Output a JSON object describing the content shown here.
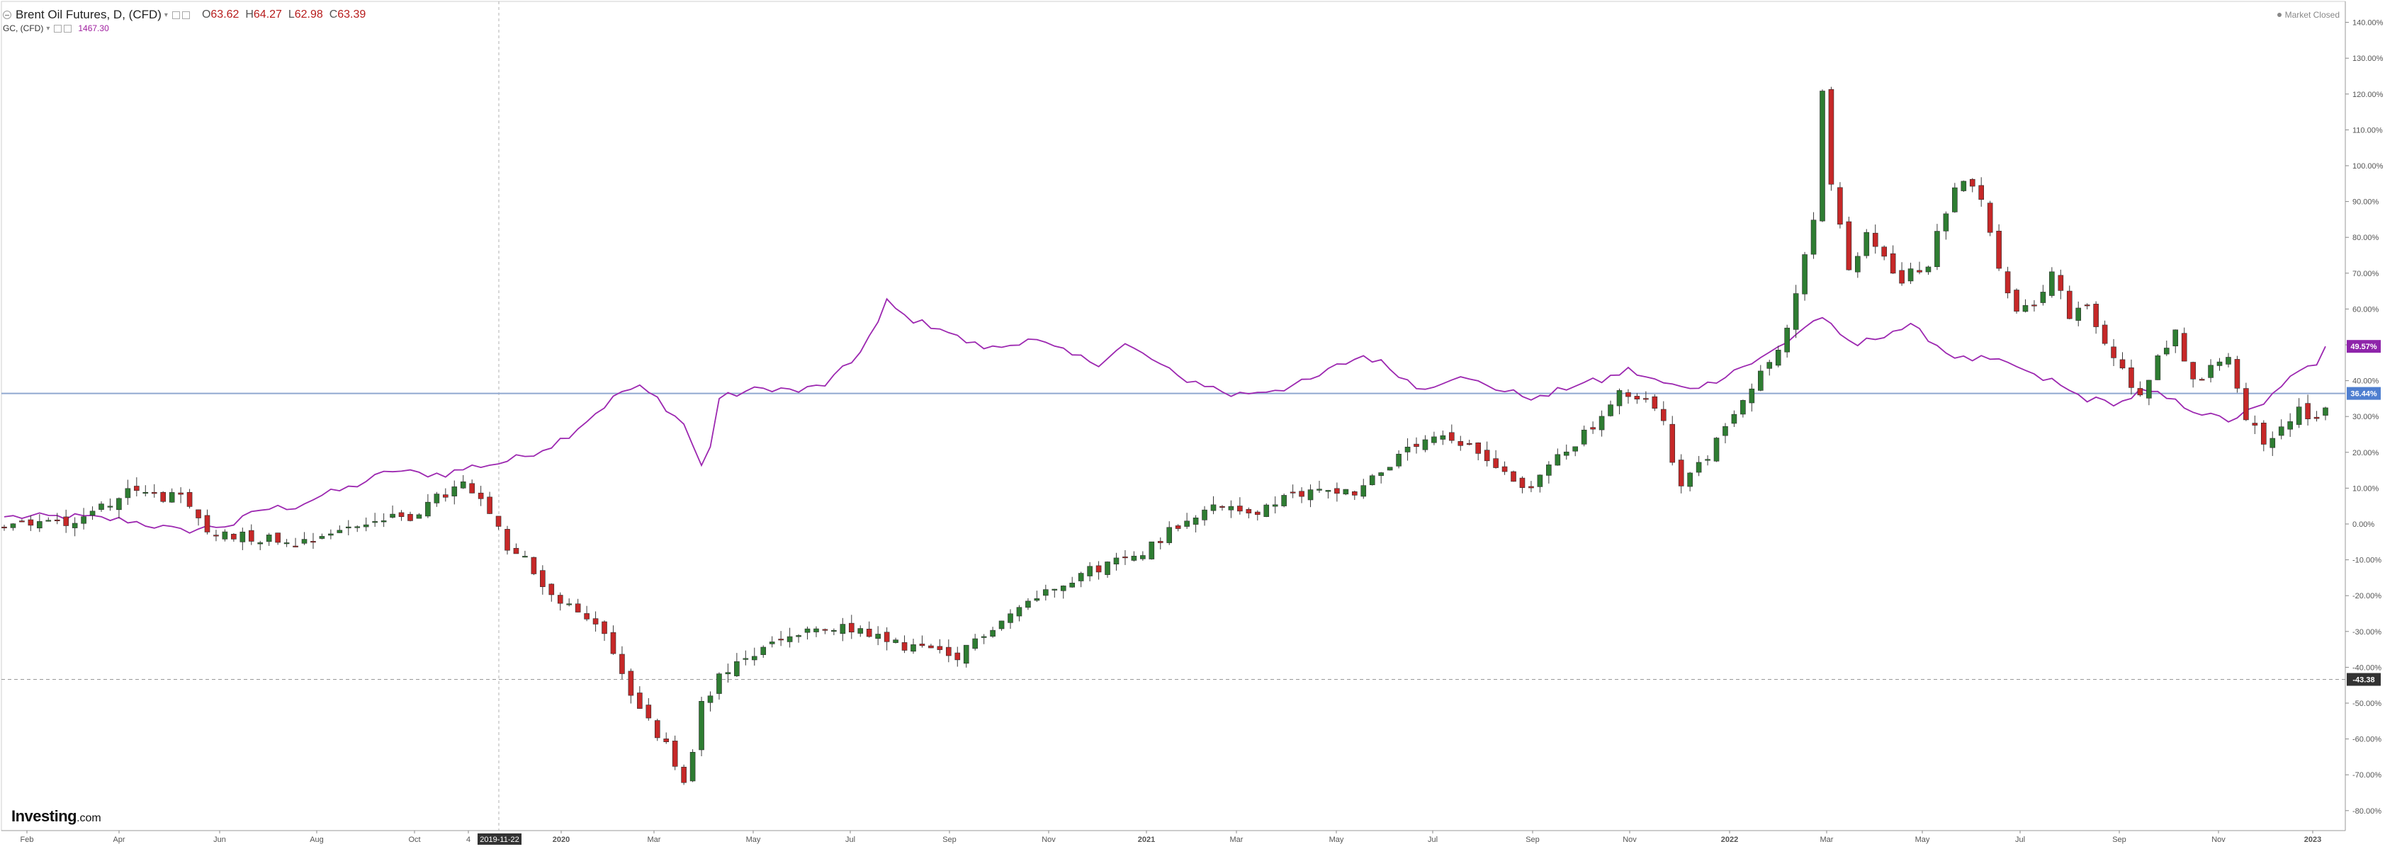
{
  "legend": {
    "title": "Brent Oil Futures, D, (CFD)",
    "open_label": "O",
    "open": "63.62",
    "high_label": "H",
    "high": "64.27",
    "low_label": "L",
    "low": "62.98",
    "close_label": "C",
    "close": "63.39",
    "overlay_symbol": "GC, (CFD)",
    "overlay_value": "1467.30"
  },
  "market_status": "Market Closed",
  "brand": {
    "name": "Investing",
    "suffix": ".com"
  },
  "colors": {
    "up": "#2e7d32",
    "down": "#c62828",
    "overlay": "#9c27b0",
    "crosshair": "#b0b0b0",
    "hline": "#90a8d0",
    "bg": "#ffffff"
  },
  "icons": [
    "collapse-icon",
    "settings-icon",
    "close-icon"
  ],
  "chart_data": {
    "type": "line",
    "x_axis_labels": [
      "Feb",
      "Apr",
      "Jun",
      "Aug",
      "Oct",
      "4",
      "2020",
      "Mar",
      "May",
      "Jul",
      "Sep",
      "Nov",
      "2021",
      "Mar",
      "May",
      "Jul",
      "Sep",
      "Nov",
      "2022",
      "Mar",
      "May",
      "Jul",
      "Sep",
      "Nov",
      "2023"
    ],
    "crosshair_date": "2019-11-22",
    "y_axis": {
      "unit": "%",
      "ylim": [
        -85,
        145
      ],
      "ticks": [
        "140.00%",
        "130.00%",
        "120.00%",
        "110.00%",
        "100.00%",
        "90.00%",
        "80.00%",
        "70.00%",
        "60.00%",
        "50.00%",
        "40.00%",
        "30.00%",
        "20.00%",
        "10.00%",
        "0.00%",
        "-10.00%",
        "-20.00%",
        "-30.00%",
        "-40.00%",
        "-50.00%",
        "-60.00%",
        "-70.00%",
        "-80.00%"
      ]
    },
    "badges": {
      "overlay_last": "49.57%",
      "crosshair_value": "36.44%",
      "horizontal_line": "-43.38"
    },
    "badge_values": {
      "overlay_last": 49.57,
      "crosshair_value": 36.44,
      "horizontal_line": -43.38
    },
    "series": [
      {
        "name": "Brent Oil Futures",
        "style": "candlestick",
        "anchors": [
          [
            0,
            0
          ],
          [
            8,
            1
          ],
          [
            14,
            9
          ],
          [
            20,
            7
          ],
          [
            23,
            -2
          ],
          [
            26,
            -3
          ],
          [
            30,
            -4
          ],
          [
            33,
            -5
          ],
          [
            36,
            -3
          ],
          [
            39,
            -1
          ],
          [
            42,
            1
          ],
          [
            46,
            2
          ],
          [
            49,
            7
          ],
          [
            52,
            11
          ],
          [
            55,
            3
          ],
          [
            57,
            -7
          ],
          [
            59,
            -10
          ],
          [
            61,
            -17
          ],
          [
            63,
            -22
          ],
          [
            65,
            -25
          ],
          [
            67,
            -27
          ],
          [
            69,
            -35
          ],
          [
            70,
            -42
          ],
          [
            72,
            -52
          ],
          [
            75,
            -62
          ],
          [
            77,
            -72
          ],
          [
            78,
            -65
          ],
          [
            79,
            -50
          ],
          [
            81,
            -43
          ],
          [
            84,
            -38
          ],
          [
            88,
            -32
          ],
          [
            92,
            -30
          ],
          [
            96,
            -29
          ],
          [
            100,
            -33
          ],
          [
            102,
            -34
          ],
          [
            105,
            -35
          ],
          [
            107,
            -38
          ],
          [
            108,
            -38
          ],
          [
            110,
            -32
          ],
          [
            114,
            -25
          ],
          [
            119,
            -17
          ],
          [
            124,
            -12
          ],
          [
            128,
            -9
          ],
          [
            131,
            -4
          ],
          [
            134,
            2
          ],
          [
            136,
            4
          ],
          [
            139,
            5
          ],
          [
            142,
            3
          ],
          [
            146,
            8
          ],
          [
            150,
            10
          ],
          [
            153,
            9
          ],
          [
            156,
            15
          ],
          [
            159,
            20
          ],
          [
            162,
            24
          ],
          [
            165,
            22
          ],
          [
            167,
            20
          ],
          [
            169,
            17
          ],
          [
            171,
            12
          ],
          [
            173,
            10
          ],
          [
            176,
            19
          ],
          [
            180,
            27
          ],
          [
            183,
            36
          ],
          [
            186,
            34
          ],
          [
            188,
            30
          ],
          [
            189,
            18
          ],
          [
            190,
            12
          ],
          [
            191,
            13
          ],
          [
            193,
            19
          ],
          [
            195,
            28
          ],
          [
            197,
            36
          ],
          [
            199,
            42
          ],
          [
            201,
            48
          ],
          [
            203,
            63
          ],
          [
            205,
            85
          ],
          [
            206,
            120
          ],
          [
            207,
            95
          ],
          [
            209,
            70
          ],
          [
            211,
            80
          ],
          [
            213,
            75
          ],
          [
            215,
            67
          ],
          [
            216,
            70
          ],
          [
            218,
            73
          ],
          [
            220,
            88
          ],
          [
            222,
            97
          ],
          [
            224,
            92
          ],
          [
            226,
            70
          ],
          [
            228,
            60
          ],
          [
            230,
            62
          ],
          [
            232,
            70
          ],
          [
            234,
            58
          ],
          [
            236,
            60
          ],
          [
            238,
            50
          ],
          [
            240,
            43
          ],
          [
            242,
            35
          ],
          [
            244,
            48
          ],
          [
            246,
            53
          ],
          [
            248,
            40
          ],
          [
            250,
            43
          ],
          [
            252,
            48
          ],
          [
            254,
            30
          ],
          [
            256,
            23
          ],
          [
            258,
            27
          ],
          [
            260,
            32
          ],
          [
            262,
            28
          ],
          [
            263,
            33
          ]
        ]
      },
      {
        "name": "GC",
        "style": "line",
        "anchors": [
          [
            0,
            2
          ],
          [
            8,
            2
          ],
          [
            14,
            1
          ],
          [
            20,
            -2
          ],
          [
            23,
            -1
          ],
          [
            26,
            0
          ],
          [
            29,
            4
          ],
          [
            33,
            5
          ],
          [
            36,
            8
          ],
          [
            39,
            10
          ],
          [
            42,
            13
          ],
          [
            44,
            15
          ],
          [
            47,
            14
          ],
          [
            50,
            14
          ],
          [
            53,
            16
          ],
          [
            56,
            17
          ],
          [
            59,
            19
          ],
          [
            62,
            22
          ],
          [
            64,
            25
          ],
          [
            66,
            29
          ],
          [
            68,
            33
          ],
          [
            70,
            37
          ],
          [
            72,
            38
          ],
          [
            74,
            35
          ],
          [
            76,
            30
          ],
          [
            77,
            28
          ],
          [
            78,
            22
          ],
          [
            79,
            16
          ],
          [
            80,
            22
          ],
          [
            81,
            35
          ],
          [
            84,
            37
          ],
          [
            87,
            38
          ],
          [
            90,
            37
          ],
          [
            93,
            39
          ],
          [
            96,
            45
          ],
          [
            99,
            56
          ],
          [
            100,
            62
          ],
          [
            102,
            58
          ],
          [
            104,
            56
          ],
          [
            106,
            55
          ],
          [
            108,
            52
          ],
          [
            110,
            50
          ],
          [
            112,
            49
          ],
          [
            114,
            50
          ],
          [
            116,
            52
          ],
          [
            118,
            50
          ],
          [
            121,
            47
          ],
          [
            124,
            45
          ],
          [
            127,
            50
          ],
          [
            130,
            46
          ],
          [
            133,
            41
          ],
          [
            136,
            39
          ],
          [
            139,
            36
          ],
          [
            142,
            37
          ],
          [
            145,
            38
          ],
          [
            148,
            40
          ],
          [
            151,
            44
          ],
          [
            154,
            47
          ],
          [
            156,
            45
          ],
          [
            158,
            42
          ],
          [
            160,
            38
          ],
          [
            162,
            39
          ],
          [
            164,
            41
          ],
          [
            166,
            40
          ],
          [
            168,
            39
          ],
          [
            170,
            37
          ],
          [
            172,
            36
          ],
          [
            174,
            35
          ],
          [
            176,
            37
          ],
          [
            178,
            39
          ],
          [
            181,
            40
          ],
          [
            184,
            43
          ],
          [
            187,
            40
          ],
          [
            190,
            38
          ],
          [
            193,
            39
          ],
          [
            196,
            43
          ],
          [
            199,
            46
          ],
          [
            202,
            51
          ],
          [
            204,
            55
          ],
          [
            206,
            58
          ],
          [
            208,
            52
          ],
          [
            210,
            50
          ],
          [
            212,
            52
          ],
          [
            214,
            54
          ],
          [
            216,
            55
          ],
          [
            218,
            52
          ],
          [
            220,
            48
          ],
          [
            222,
            46
          ],
          [
            224,
            46
          ],
          [
            226,
            45
          ],
          [
            228,
            44
          ],
          [
            230,
            41
          ],
          [
            232,
            40
          ],
          [
            234,
            37
          ],
          [
            236,
            35
          ],
          [
            238,
            34
          ],
          [
            240,
            34
          ],
          [
            242,
            37
          ],
          [
            244,
            36
          ],
          [
            246,
            34
          ],
          [
            248,
            32
          ],
          [
            250,
            30
          ],
          [
            252,
            29
          ],
          [
            254,
            31
          ],
          [
            256,
            33
          ],
          [
            258,
            39
          ],
          [
            260,
            42
          ],
          [
            262,
            45
          ],
          [
            263,
            49.57
          ]
        ]
      }
    ]
  }
}
